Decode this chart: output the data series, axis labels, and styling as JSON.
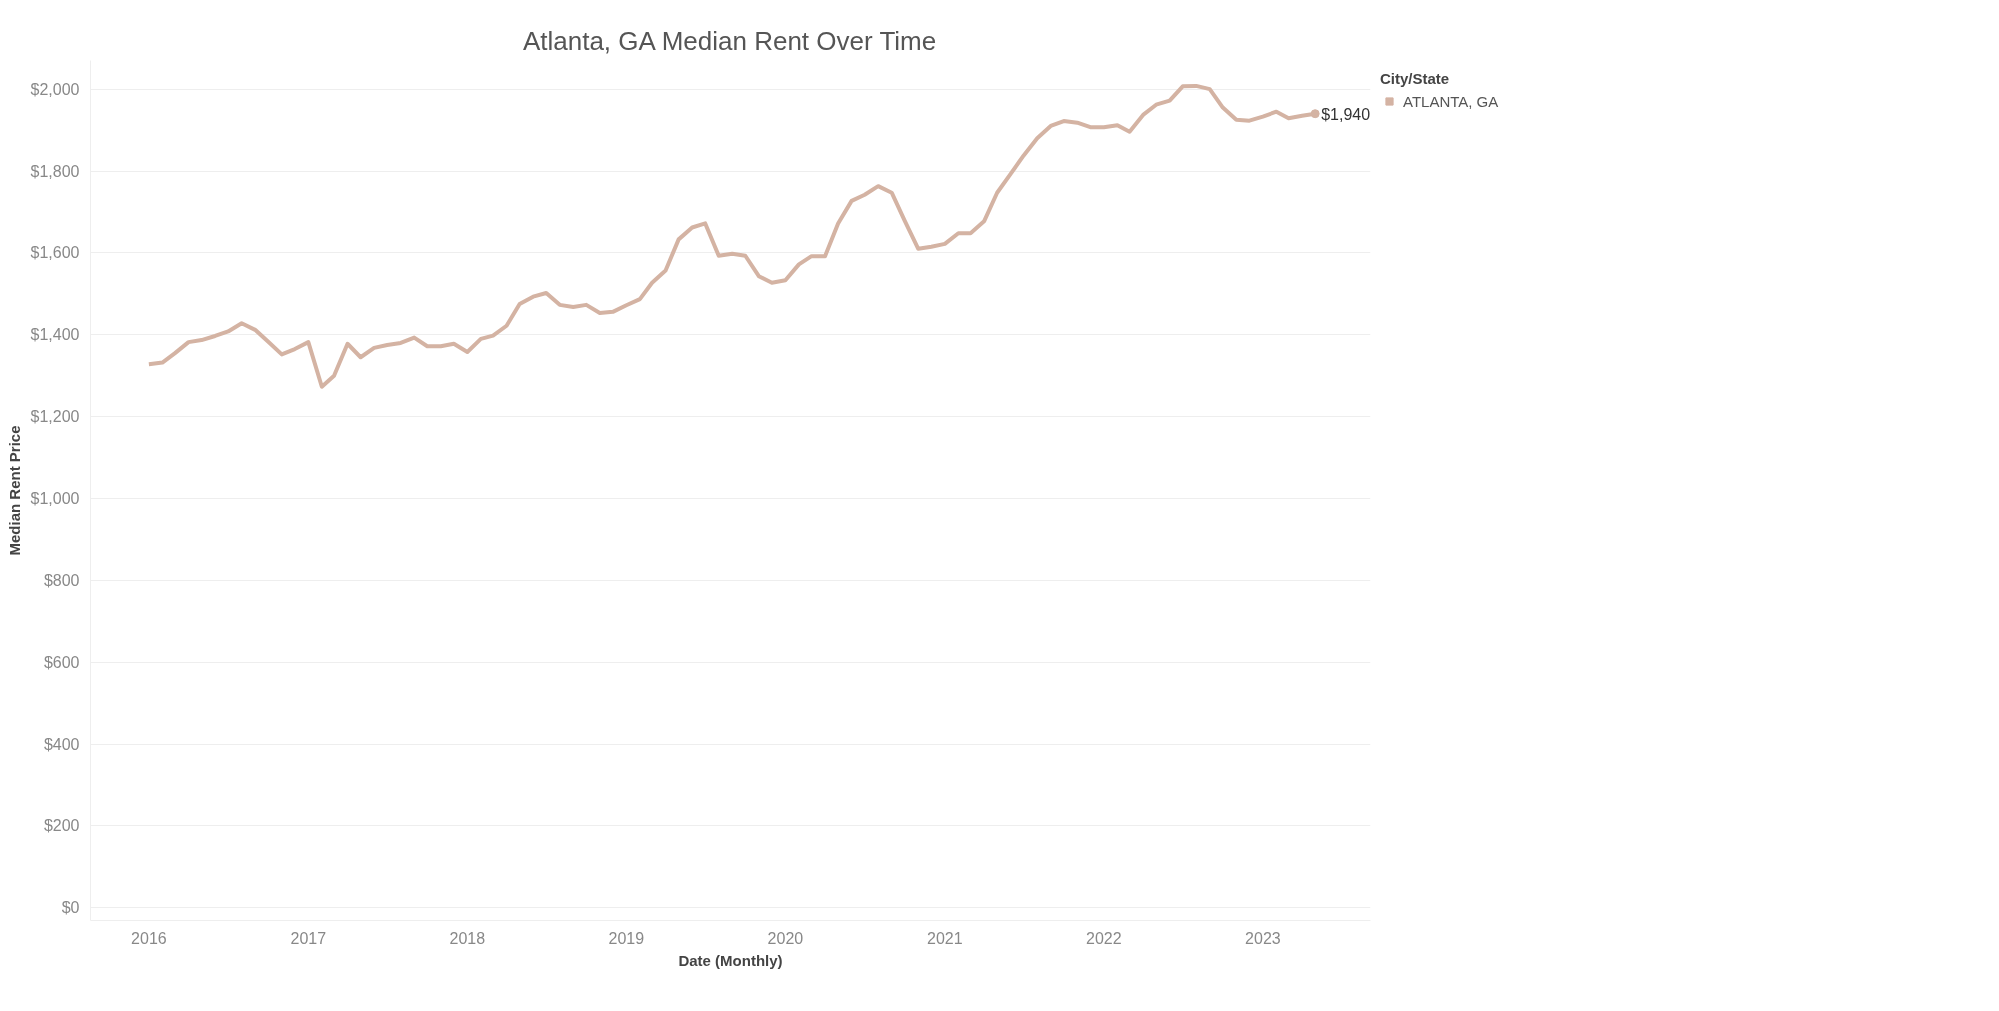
{
  "chart_data": {
    "type": "line",
    "title": "Atlanta, GA Median Rent Over Time",
    "xlabel": "Date (Monthly)",
    "ylabel": "Median Rent Price",
    "legend_title": "City/State",
    "x": [
      "2016-01",
      "2016-02",
      "2016-03",
      "2016-04",
      "2016-05",
      "2016-06",
      "2016-07",
      "2016-08",
      "2016-09",
      "2016-10",
      "2016-11",
      "2016-12",
      "2017-01",
      "2017-02",
      "2017-03",
      "2017-04",
      "2017-05",
      "2017-06",
      "2017-07",
      "2017-08",
      "2017-09",
      "2017-10",
      "2017-11",
      "2017-12",
      "2018-01",
      "2018-02",
      "2018-03",
      "2018-04",
      "2018-05",
      "2018-06",
      "2018-07",
      "2018-08",
      "2018-09",
      "2018-10",
      "2018-11",
      "2018-12",
      "2019-01",
      "2019-02",
      "2019-03",
      "2019-04",
      "2019-05",
      "2019-06",
      "2019-07",
      "2019-08",
      "2019-09",
      "2019-10",
      "2019-11",
      "2019-12",
      "2020-01",
      "2020-02",
      "2020-03",
      "2020-04",
      "2020-05",
      "2020-06",
      "2020-07",
      "2020-08",
      "2020-09",
      "2020-10",
      "2020-11",
      "2020-12",
      "2021-01",
      "2021-02",
      "2021-03",
      "2021-04",
      "2021-05",
      "2021-06",
      "2021-07",
      "2021-08",
      "2021-09",
      "2021-10",
      "2021-11",
      "2021-12",
      "2022-01",
      "2022-02",
      "2022-03",
      "2022-04",
      "2022-05",
      "2022-06",
      "2022-07",
      "2022-08",
      "2022-09",
      "2022-10",
      "2022-11",
      "2022-12",
      "2023-01",
      "2023-02",
      "2023-03",
      "2023-04",
      "2023-05"
    ],
    "series": [
      {
        "name": "ATLANTA, GA",
        "color": "#d4b3a3",
        "values": [
          1328,
          1332,
          1355,
          1382,
          1387,
          1397,
          1408,
          1428,
          1412,
          1383,
          1352,
          1365,
          1382,
          1273,
          1300,
          1378,
          1345,
          1368,
          1375,
          1380,
          1393,
          1372,
          1372,
          1378,
          1358,
          1390,
          1398,
          1422,
          1475,
          1493,
          1502,
          1473,
          1468,
          1473,
          1453,
          1456,
          1472,
          1487,
          1527,
          1557,
          1633,
          1662,
          1672,
          1593,
          1598,
          1593,
          1543,
          1527,
          1533,
          1572,
          1592,
          1592,
          1672,
          1727,
          1742,
          1763,
          1747,
          1678,
          1610,
          1615,
          1622,
          1648,
          1648,
          1677,
          1747,
          1793,
          1838,
          1880,
          1910,
          1922,
          1918,
          1907,
          1907,
          1912,
          1896,
          1937,
          1962,
          1972,
          2007,
          2008,
          2000,
          1955,
          1925,
          1923,
          1933,
          1945,
          1929,
          1935,
          1940
        ]
      }
    ],
    "annotations": [
      {
        "text": "$1,940",
        "x": "2023-05",
        "y": 1940
      }
    ],
    "xlim": [
      "2015-08-20",
      "2023-09-05"
    ],
    "xticks": [
      "2016",
      "2017",
      "2018",
      "2019",
      "2020",
      "2021",
      "2022",
      "2023"
    ],
    "ylim": [
      -31,
      2070
    ],
    "yticks": [
      {
        "value": 0,
        "label": "$0"
      },
      {
        "value": 200,
        "label": "$200"
      },
      {
        "value": 400,
        "label": "$400"
      },
      {
        "value": 600,
        "label": "$600"
      },
      {
        "value": 800,
        "label": "$800"
      },
      {
        "value": 1000,
        "label": "$1,000"
      },
      {
        "value": 1200,
        "label": "$1,200"
      },
      {
        "value": 1400,
        "label": "$1,400"
      },
      {
        "value": 1600,
        "label": "$1,600"
      },
      {
        "value": 1800,
        "label": "$1,800"
      },
      {
        "value": 2000,
        "label": "$2,000"
      }
    ],
    "grid": "y",
    "legend": "top right",
    "line_style": "solid"
  }
}
